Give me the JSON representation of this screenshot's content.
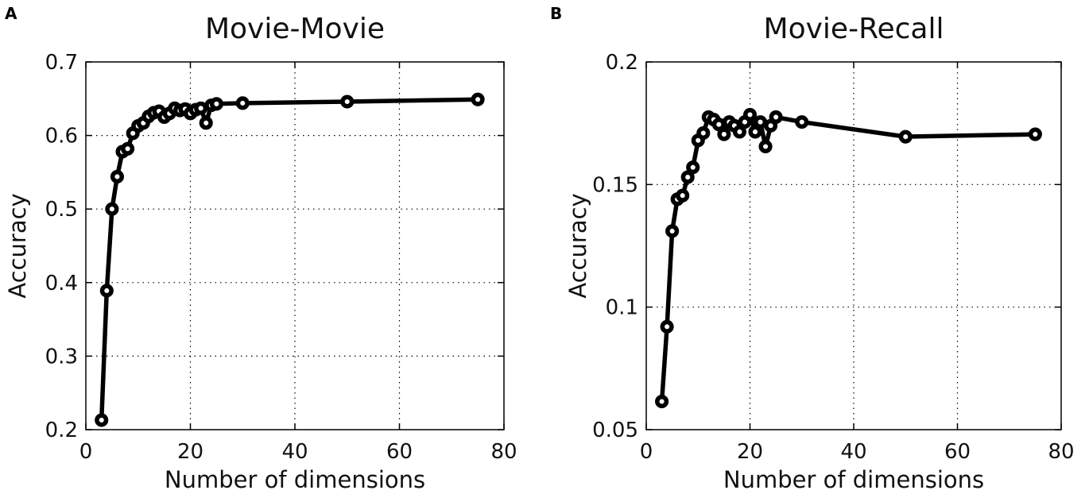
{
  "chart_data": [
    {
      "panel_label": "A",
      "type": "line",
      "title": "Movie-Movie",
      "xlabel": "Number of dimensions",
      "ylabel": "Accuracy",
      "xlim": [
        0,
        80
      ],
      "ylim": [
        0.2,
        0.7
      ],
      "xticks": [
        0,
        20,
        40,
        60,
        80
      ],
      "yticks": [
        0.2,
        0.3,
        0.4,
        0.5,
        0.6,
        0.7
      ],
      "xtick_labels": [
        "0",
        "20",
        "40",
        "60",
        "80"
      ],
      "ytick_labels": [
        "0.2",
        "0.3",
        "0.4",
        "0.5",
        "0.6",
        "0.7"
      ],
      "grid": true,
      "series": [
        {
          "x": [
            3,
            4,
            5,
            6,
            7,
            8,
            9,
            10,
            11,
            12,
            13,
            14,
            15,
            16,
            17,
            18,
            19,
            20,
            21,
            22,
            23,
            24,
            25,
            30,
            50,
            75
          ],
          "y": [
            0.213,
            0.389,
            0.5,
            0.544,
            0.578,
            0.582,
            0.603,
            0.613,
            0.617,
            0.626,
            0.631,
            0.633,
            0.625,
            0.63,
            0.637,
            0.634,
            0.636,
            0.63,
            0.635,
            0.637,
            0.617,
            0.641,
            0.643,
            0.644,
            0.646,
            0.649
          ]
        }
      ]
    },
    {
      "panel_label": "B",
      "type": "line",
      "title": "Movie-Recall",
      "xlabel": "Number of dimensions",
      "ylabel": "Accuracy",
      "xlim": [
        0,
        80
      ],
      "ylim": [
        0.05,
        0.2
      ],
      "xticks": [
        0,
        20,
        40,
        60,
        80
      ],
      "yticks": [
        0.05,
        0.1,
        0.15,
        0.2
      ],
      "xtick_labels": [
        "0",
        "20",
        "40",
        "60",
        "80"
      ],
      "ytick_labels": [
        "0.05",
        "0.1",
        "0.15",
        "0.2"
      ],
      "grid": true,
      "series": [
        {
          "x": [
            3,
            4,
            5,
            6,
            7,
            8,
            9,
            10,
            11,
            12,
            13,
            14,
            15,
            16,
            17,
            18,
            19,
            20,
            21,
            22,
            23,
            24,
            25,
            30,
            50,
            75
          ],
          "y": [
            0.0615,
            0.092,
            0.131,
            0.144,
            0.1455,
            0.153,
            0.157,
            0.168,
            0.171,
            0.1775,
            0.1765,
            0.1745,
            0.1705,
            0.1755,
            0.174,
            0.1715,
            0.1755,
            0.1785,
            0.1715,
            0.1755,
            0.1655,
            0.174,
            0.1775,
            0.1755,
            0.1695,
            0.1705
          ]
        }
      ]
    }
  ]
}
